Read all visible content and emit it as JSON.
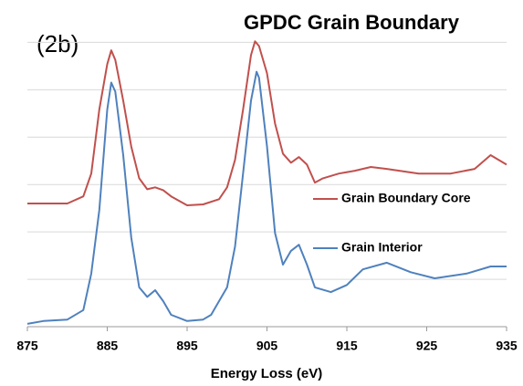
{
  "chart_data": {
    "type": "line",
    "title": "GPDC Grain Boundary",
    "annotation": "(2b)",
    "xlabel": "Energy Loss (eV)",
    "xlim": [
      875,
      935
    ],
    "xticks": [
      875,
      885,
      895,
      905,
      915,
      925,
      935
    ],
    "ylim": [
      0,
      6.2
    ],
    "yticks": [
      0,
      1,
      2,
      3,
      4,
      5,
      6
    ],
    "grid": true,
    "legend": "right",
    "series": [
      {
        "name": "Grain Boundary Core",
        "color": "#c0504d",
        "x": [
          875,
          880,
          882,
          883,
          884,
          885,
          885.5,
          886,
          887,
          888,
          889,
          890,
          891,
          892,
          893,
          895,
          897,
          899,
          900,
          901,
          902,
          903,
          903.5,
          904,
          905,
          906,
          907,
          908,
          909,
          910,
          911,
          912,
          914,
          916,
          918,
          920,
          924,
          928,
          931,
          933,
          935
        ],
        "values": [
          2.6,
          2.6,
          2.75,
          3.23,
          4.58,
          5.54,
          5.83,
          5.63,
          4.77,
          3.8,
          3.13,
          2.9,
          2.94,
          2.88,
          2.75,
          2.56,
          2.58,
          2.69,
          2.94,
          3.52,
          4.58,
          5.73,
          6.02,
          5.92,
          5.35,
          4.29,
          3.65,
          3.46,
          3.58,
          3.42,
          3.04,
          3.13,
          3.23,
          3.29,
          3.37,
          3.33,
          3.23,
          3.23,
          3.33,
          3.62,
          3.42
        ]
      },
      {
        "name": "Grain Interior",
        "color": "#4f81bd",
        "x": [
          875,
          877,
          880,
          882,
          883,
          884,
          885,
          885.5,
          886,
          887,
          888,
          889,
          890,
          891,
          892,
          893,
          895,
          897,
          898,
          899,
          900,
          901,
          902,
          903,
          903.7,
          904,
          905,
          906,
          907,
          908,
          909,
          910,
          911,
          913,
          915,
          917,
          920,
          923,
          926,
          930,
          933,
          935
        ],
        "values": [
          0.06,
          0.12,
          0.15,
          0.35,
          1.12,
          2.46,
          4.58,
          5.15,
          4.96,
          3.62,
          1.88,
          0.83,
          0.63,
          0.77,
          0.54,
          0.25,
          0.12,
          0.15,
          0.25,
          0.54,
          0.83,
          1.69,
          3.23,
          4.77,
          5.38,
          5.25,
          3.81,
          1.98,
          1.31,
          1.6,
          1.73,
          1.31,
          0.83,
          0.73,
          0.88,
          1.21,
          1.35,
          1.15,
          1.02,
          1.12,
          1.27,
          1.27
        ]
      }
    ]
  }
}
